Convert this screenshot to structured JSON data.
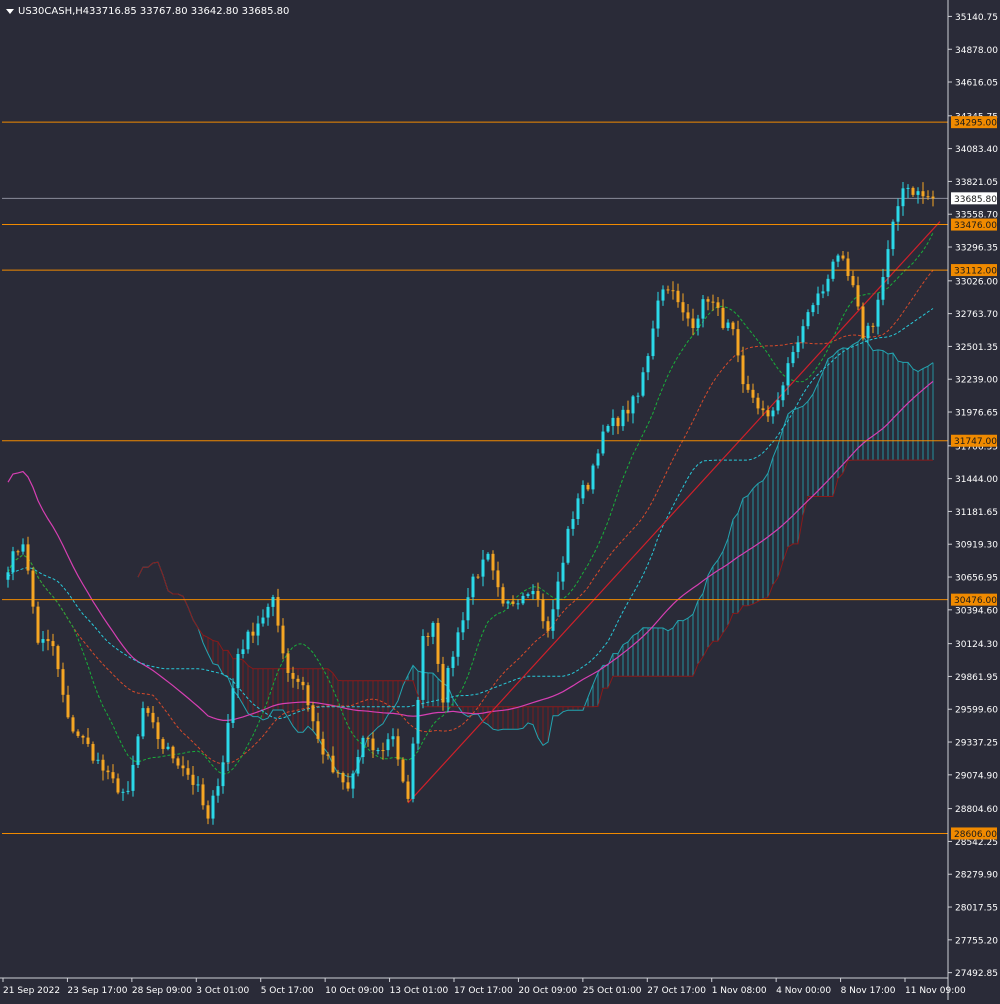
{
  "header": {
    "symbol": "US30CASH,H4",
    "ohlc": "33716.85 33767.80 33642.80 33685.80"
  },
  "colors": {
    "background": "#2a2b38",
    "bull": "#2bd9e8",
    "bear": "#f5a623",
    "level": "#f08a00",
    "ma_slow": "#d63fb3",
    "ma_mid": "#d64a2a",
    "ma_fast": "#19b03a",
    "kijun": "#28c8d8",
    "trend": "#d0202a",
    "kumo_bull": "#23a4b0",
    "kumo_bear": "#8a1a1a",
    "axis_text": "#ffffff"
  },
  "chart_data": {
    "type": "candlestick",
    "title": "US30CASH,H4",
    "ylim": [
      27450,
      35240
    ],
    "y_ticks": [
      "35140.75",
      "34878.00",
      "34616.05",
      "34345.75",
      "34083.40",
      "33821.05",
      "33558.70",
      "33296.35",
      "33026.00",
      "32763.70",
      "32501.35",
      "32239.00",
      "31976.65",
      "31706.35",
      "31444.00",
      "31181.65",
      "30919.30",
      "30656.95",
      "30394.60",
      "30124.30",
      "29861.95",
      "29599.60",
      "29337.25",
      "29074.90",
      "28804.60",
      "28542.25",
      "28279.90",
      "28017.55",
      "27755.20",
      "27492.85"
    ],
    "x_labels": [
      "21 Sep 2022",
      "23 Sep 17:00",
      "28 Sep 09:00",
      "3 Oct 01:00",
      "5 Oct 17:00",
      "10 Oct 09:00",
      "13 Oct 01:00",
      "17 Oct 17:00",
      "20 Oct 09:00",
      "25 Oct 01:00",
      "27 Oct 17:00",
      "1 Nov 08:00",
      "4 Nov 00:00",
      "8 Nov 17:00",
      "11 Nov 09:00"
    ],
    "horizontal_levels": [
      {
        "label": "34295.00",
        "value": 34295.0
      },
      {
        "label": "33476.00",
        "value": 33476.0
      },
      {
        "label": "33112.00",
        "value": 33112.0
      },
      {
        "label": "31747.00",
        "value": 31747.0
      },
      {
        "label": "30476.00",
        "value": 30476.0
      },
      {
        "label": "28606.00",
        "value": 28606.0
      }
    ],
    "current_price": {
      "label": "33685.80",
      "value": 33685.8
    },
    "anchors": [
      [
        0,
        30750
      ],
      [
        3,
        30950
      ],
      [
        6,
        30150
      ],
      [
        9,
        30100
      ],
      [
        12,
        29500
      ],
      [
        16,
        29300
      ],
      [
        20,
        29050
      ],
      [
        24,
        28900
      ],
      [
        27,
        29600
      ],
      [
        31,
        29300
      ],
      [
        35,
        29150
      ],
      [
        38,
        28950
      ],
      [
        40,
        28700
      ],
      [
        43,
        29200
      ],
      [
        46,
        30050
      ],
      [
        50,
        30300
      ],
      [
        53,
        30450
      ],
      [
        56,
        29900
      ],
      [
        59,
        29800
      ],
      [
        62,
        29350
      ],
      [
        65,
        29100
      ],
      [
        68,
        28950
      ],
      [
        71,
        29350
      ],
      [
        74,
        29250
      ],
      [
        77,
        29400
      ],
      [
        80,
        28850
      ],
      [
        83,
        30150
      ],
      [
        85,
        30300
      ],
      [
        87,
        29700
      ],
      [
        89,
        30050
      ],
      [
        91,
        30350
      ],
      [
        93,
        30650
      ],
      [
        96,
        30800
      ],
      [
        99,
        30400
      ],
      [
        102,
        30500
      ],
      [
        105,
        30600
      ],
      [
        108,
        30200
      ],
      [
        110,
        30600
      ],
      [
        112,
        31000
      ],
      [
        114,
        31300
      ],
      [
        116,
        31400
      ],
      [
        118,
        31700
      ],
      [
        120,
        31850
      ],
      [
        123,
        31950
      ],
      [
        126,
        32100
      ],
      [
        128,
        32450
      ],
      [
        130,
        32900
      ],
      [
        132,
        33000
      ],
      [
        135,
        32750
      ],
      [
        137,
        32700
      ],
      [
        140,
        32900
      ],
      [
        143,
        32700
      ],
      [
        145,
        32600
      ],
      [
        147,
        32150
      ],
      [
        149,
        32100
      ],
      [
        152,
        31900
      ],
      [
        155,
        32200
      ],
      [
        157,
        32450
      ],
      [
        159,
        32650
      ],
      [
        161,
        32850
      ],
      [
        163,
        32950
      ],
      [
        165,
        33200
      ],
      [
        167,
        33150
      ],
      [
        169,
        32950
      ],
      [
        171,
        32600
      ],
      [
        173,
        32700
      ],
      [
        175,
        33050
      ],
      [
        177,
        33450
      ],
      [
        179,
        33800
      ],
      [
        181,
        33750
      ],
      [
        183,
        33700
      ],
      [
        185,
        33685.8
      ]
    ]
  }
}
